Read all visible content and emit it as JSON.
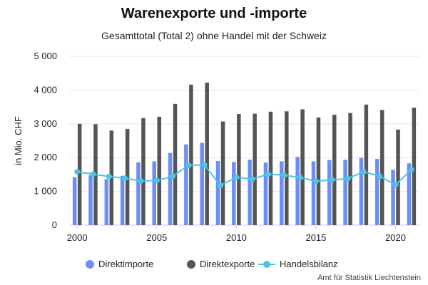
{
  "header": {
    "title": "Warenexporte und -importe",
    "subtitle": "Gesamttotal (Total 2) ohne Handel mit der Schweiz"
  },
  "source": "Amt für Statistik Liechtenstein",
  "colors": {
    "imports": "#6b8ff2",
    "exports": "#555555",
    "balance": "#4fc3e6",
    "grid": "#e6e6e6",
    "axis": "#cccccc"
  },
  "legend": {
    "imports": "Direktimporte",
    "exports": "Direktexporte",
    "balance": "Handelsbilanz"
  },
  "chart_data": {
    "type": "bar",
    "title": "Warenexporte und -importe",
    "subtitle": "Gesamttotal (Total 2) ohne Handel mit der Schweiz",
    "xlabel": "",
    "ylabel": "in Mio. CHF",
    "ylim": [
      0,
      5000
    ],
    "yticks": [
      0,
      1000,
      2000,
      3000,
      4000,
      5000
    ],
    "ytick_labels": [
      "0",
      "1 000",
      "2 000",
      "3 000",
      "4 000",
      "5 000"
    ],
    "xticks": [
      2000,
      2005,
      2010,
      2015,
      2020
    ],
    "grid": true,
    "legend_position": "bottom",
    "categories": [
      2000,
      2001,
      2002,
      2003,
      2004,
      2005,
      2006,
      2007,
      2008,
      2009,
      2010,
      2011,
      2012,
      2013,
      2014,
      2015,
      2016,
      2017,
      2018,
      2019,
      2020,
      2021
    ],
    "series": [
      {
        "name": "Direktimporte",
        "type": "bar",
        "values": [
          1420,
          1480,
          1360,
          1460,
          1860,
          1890,
          2140,
          2390,
          2440,
          1900,
          1870,
          1940,
          1850,
          1890,
          2020,
          1890,
          1930,
          1940,
          1990,
          1960,
          1640,
          1830
        ]
      },
      {
        "name": "Direktexporte",
        "type": "bar",
        "values": [
          3000,
          2990,
          2800,
          2850,
          3170,
          3210,
          3590,
          4160,
          4220,
          3070,
          3290,
          3300,
          3360,
          3370,
          3430,
          3190,
          3270,
          3320,
          3570,
          3410,
          2830,
          3480
        ]
      },
      {
        "name": "Handelsbilanz",
        "type": "line",
        "values": [
          1580,
          1510,
          1440,
          1390,
          1310,
          1320,
          1450,
          1770,
          1780,
          1170,
          1420,
          1360,
          1510,
          1480,
          1410,
          1300,
          1340,
          1380,
          1580,
          1450,
          1190,
          1650
        ]
      }
    ]
  }
}
